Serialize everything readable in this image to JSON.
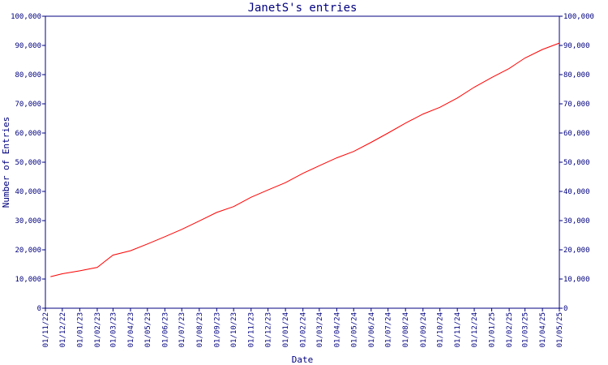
{
  "chart_data": {
    "type": "line",
    "title": "JanetS's entries",
    "xlabel": "Date",
    "ylabel": "Number of Entries",
    "ylim": [
      0,
      100000
    ],
    "yticks": [
      0,
      10000,
      20000,
      30000,
      40000,
      50000,
      60000,
      70000,
      80000,
      90000,
      100000
    ],
    "ytick_labels": [
      "0",
      "10,000",
      "20,000",
      "30,000",
      "40,000",
      "50,000",
      "60,000",
      "70,000",
      "80,000",
      "90,000",
      "100,000"
    ],
    "y_axis_right_mirror": true,
    "xlim": [
      "2022-11-01",
      "2025-05-01"
    ],
    "xticks": [
      "2022-11-01",
      "2022-12-01",
      "2023-01-01",
      "2023-02-01",
      "2023-03-01",
      "2023-04-01",
      "2023-05-01",
      "2023-06-01",
      "2023-07-01",
      "2023-08-01",
      "2023-09-01",
      "2023-10-01",
      "2023-11-01",
      "2023-12-01",
      "2024-01-01",
      "2024-02-01",
      "2024-03-01",
      "2024-04-01",
      "2024-05-01",
      "2024-06-01",
      "2024-07-01",
      "2024-08-01",
      "2024-09-01",
      "2024-10-01",
      "2024-11-01",
      "2024-12-01",
      "2025-01-01",
      "2025-02-01",
      "2025-03-01",
      "2025-04-01",
      "2025-05-01"
    ],
    "xtick_labels": [
      "01/11/22",
      "01/12/22",
      "01/01/23",
      "01/02/23",
      "01/03/23",
      "01/04/23",
      "01/05/23",
      "01/06/23",
      "01/07/23",
      "01/08/23",
      "01/09/23",
      "01/10/23",
      "01/11/23",
      "01/12/23",
      "01/01/24",
      "01/02/24",
      "01/03/24",
      "01/04/24",
      "01/05/24",
      "01/06/24",
      "01/07/24",
      "01/08/24",
      "01/09/24",
      "01/10/24",
      "01/11/24",
      "01/12/24",
      "01/01/25",
      "01/02/25",
      "01/03/25",
      "01/04/25",
      "01/05/25"
    ],
    "grid": false,
    "series": [
      {
        "color": "#ff0000",
        "x": [
          "2022-11-10",
          "2022-12-01",
          "2023-01-01",
          "2023-02-01",
          "2023-03-01",
          "2023-04-01",
          "2023-05-01",
          "2023-06-01",
          "2023-07-01",
          "2023-08-01",
          "2023-09-01",
          "2023-10-01",
          "2023-11-01",
          "2023-12-01",
          "2024-01-01",
          "2024-02-01",
          "2024-03-01",
          "2024-04-01",
          "2024-05-01",
          "2024-06-01",
          "2024-07-01",
          "2024-08-01",
          "2024-09-01",
          "2024-10-01",
          "2024-11-01",
          "2024-12-01",
          "2025-01-01",
          "2025-02-01",
          "2025-03-01",
          "2025-04-01",
          "2025-05-01"
        ],
        "y": [
          10800,
          11800,
          12800,
          14000,
          18200,
          19700,
          22000,
          24500,
          27000,
          29900,
          32800,
          34800,
          38000,
          40500,
          43000,
          46200,
          48800,
          51500,
          53700,
          56800,
          60000,
          63400,
          66500,
          68800,
          72000,
          75700,
          79000,
          82100,
          85700,
          88600,
          90800
        ]
      }
    ]
  }
}
